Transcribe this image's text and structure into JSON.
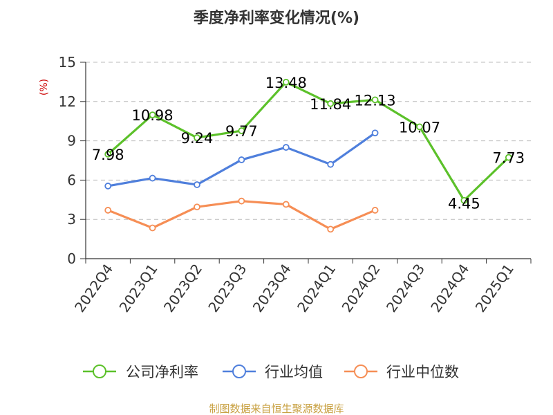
{
  "chart_data": {
    "type": "line",
    "title": "季度净利率变化情况(%)",
    "y_unit": "(%)",
    "ylim": [
      0,
      15
    ],
    "yticks": [
      0,
      3,
      6,
      9,
      12,
      15
    ],
    "grid": true,
    "legend_position": "bottom",
    "categories": [
      "2022Q4",
      "2023Q1",
      "2023Q2",
      "2023Q3",
      "2023Q4",
      "2024Q1",
      "2024Q2",
      "2024Q3",
      "2024Q4",
      "2025Q1"
    ],
    "series": [
      {
        "name": "公司净利率",
        "color": "#5cc12a",
        "values": [
          7.98,
          10.98,
          9.24,
          9.77,
          13.48,
          11.84,
          12.13,
          10.07,
          4.45,
          7.73
        ],
        "labels": [
          "7.98",
          "10.98",
          "9.24",
          "9.77",
          "13.48",
          "11.84",
          "12.13",
          "10.07",
          "4.45",
          "7.73"
        ]
      },
      {
        "name": "行业均值",
        "color": "#4f7fdc",
        "values": [
          5.55,
          6.15,
          5.65,
          7.55,
          8.5,
          7.2,
          9.6,
          null,
          null,
          null
        ]
      },
      {
        "name": "行业中位数",
        "color": "#f68e55",
        "values": [
          3.7,
          2.35,
          3.95,
          4.4,
          4.15,
          2.25,
          3.7,
          null,
          null,
          null
        ]
      }
    ]
  },
  "source": "制图数据来自恒生聚源数据库"
}
